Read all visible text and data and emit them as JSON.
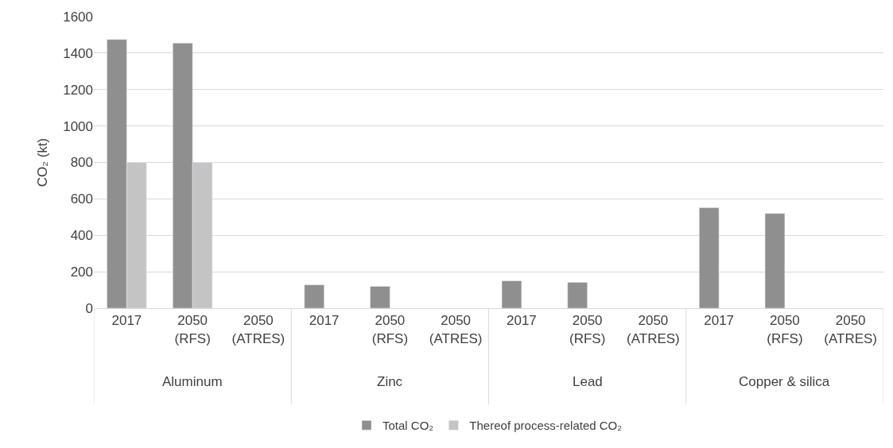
{
  "chart_data": {
    "type": "bar",
    "ylabel": "CO₂ (kt)",
    "categories": [
      "2017",
      "2050 (RFS)",
      "2050 (ATRES)",
      "2017",
      "2050 (RFS)",
      "2050 (ATRES)",
      "2017",
      "2050 (RFS)",
      "2050 (ATRES)",
      "2017",
      "2050 (RFS)",
      "2050 (ATRES)"
    ],
    "annotations": [
      "Aluminum",
      "Zinc",
      "Lead",
      "Copper & silica"
    ],
    "series": [
      {
        "name": "Total CO₂",
        "color": "#8f8f8f",
        "values": [
          1475,
          1455,
          null,
          128,
          120,
          null,
          150,
          142,
          null,
          552,
          520,
          null
        ]
      },
      {
        "name": "Thereof process-related CO₂",
        "color": "#c4c4c4",
        "values": [
          800,
          800,
          null,
          null,
          null,
          null,
          null,
          null,
          null,
          null,
          null,
          null
        ]
      }
    ],
    "ylim": [
      0,
      1600
    ],
    "yticks": [
      0,
      200,
      400,
      600,
      800,
      1000,
      1200,
      1400,
      1600
    ],
    "grid": "y",
    "legend": "bottom"
  }
}
